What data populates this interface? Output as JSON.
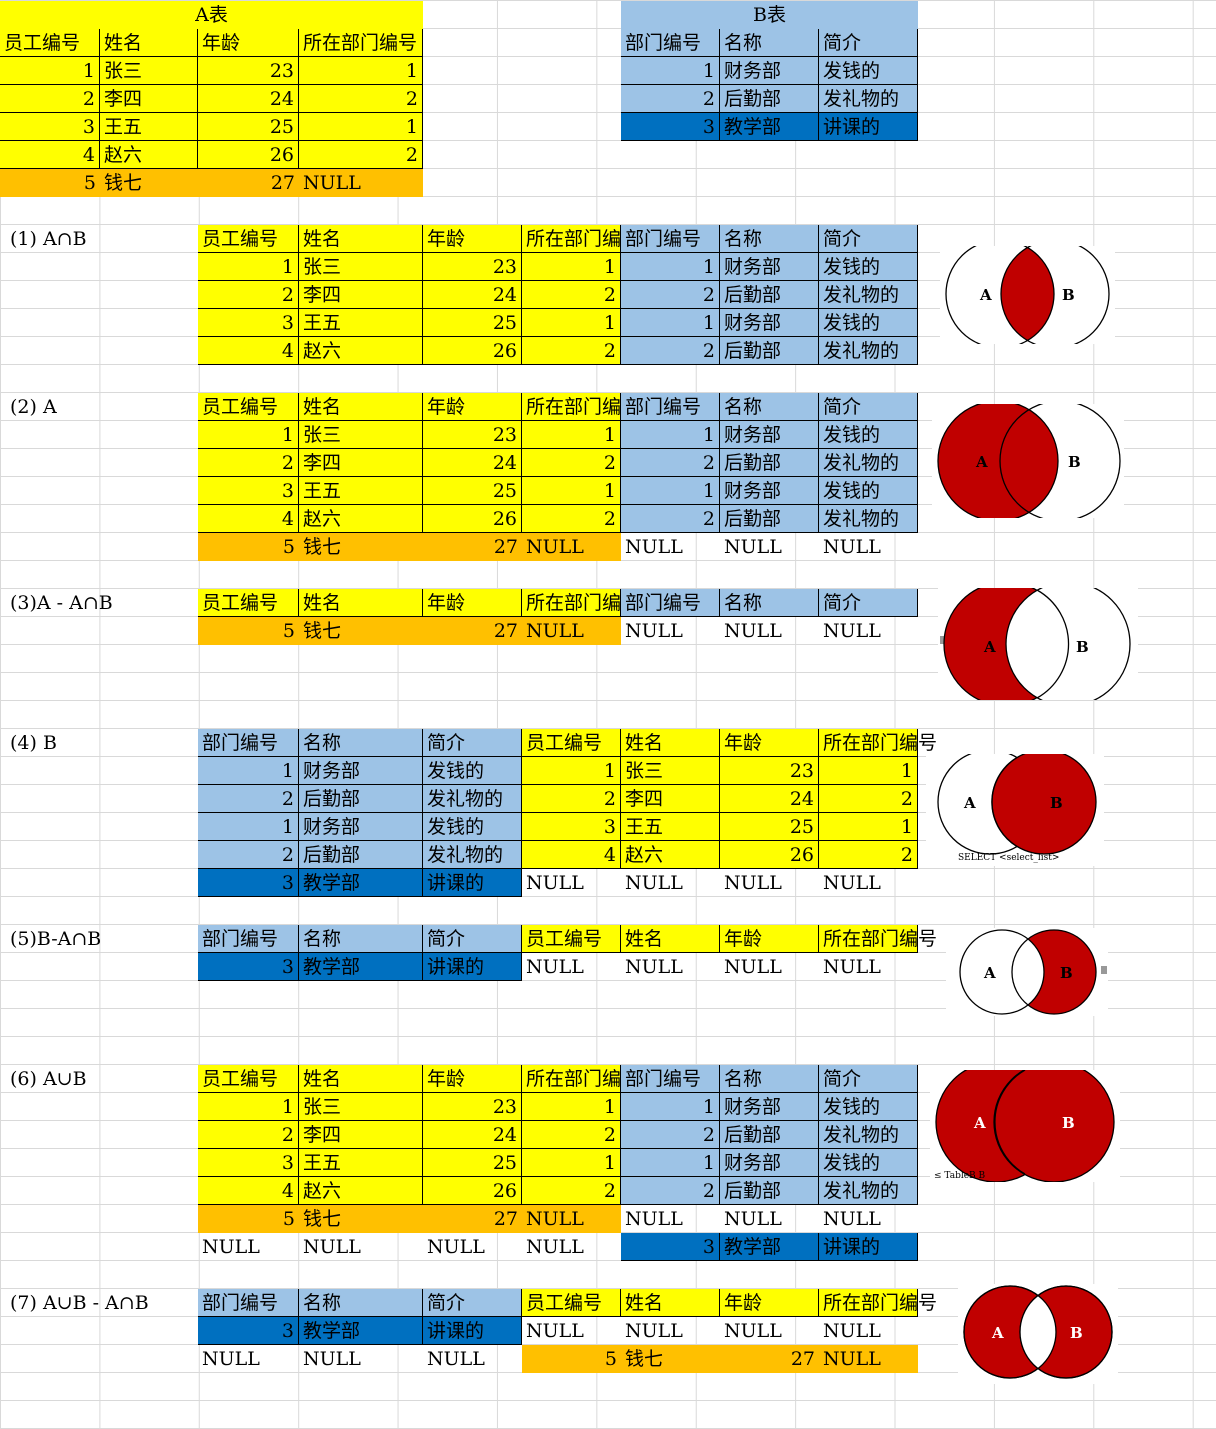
{
  "colors": {
    "yellow": "#ffff00",
    "orange": "#ffc000",
    "light_blue": "#9dc3e6",
    "dark_blue": "#0070c0",
    "venn_red": "#c00000"
  },
  "null_text": "NULL",
  "table_a": {
    "title": "A表",
    "headers": [
      "员工编号",
      "姓名",
      "年龄",
      "所在部门编号"
    ],
    "rows": [
      [
        "1",
        "张三",
        "23",
        "1"
      ],
      [
        "2",
        "李四",
        "24",
        "2"
      ],
      [
        "3",
        "王五",
        "25",
        "1"
      ],
      [
        "4",
        "赵六",
        "26",
        "2"
      ],
      [
        "5",
        "钱七",
        "27",
        "NULL"
      ]
    ]
  },
  "table_b": {
    "title": "B表",
    "headers": [
      "部门编号",
      "名称",
      "简介"
    ],
    "rows": [
      [
        "1",
        "财务部",
        "发钱的"
      ],
      [
        "2",
        "后勤部",
        "发礼物的"
      ],
      [
        "3",
        "教学部",
        "讲课的"
      ]
    ]
  },
  "sections": {
    "s1": {
      "label": "(1) A∩B"
    },
    "s2": {
      "label": "(2) A"
    },
    "s3": {
      "label": "(3)A - A∩B"
    },
    "s4": {
      "label": "(4) B"
    },
    "s5": {
      "label": "(5)B-A∩B"
    },
    "s6": {
      "label": "(6) A∪B"
    },
    "s7": {
      "label": "(7) A∪B - A∩B"
    }
  },
  "venn": {
    "a_label": "A",
    "b_label": "B",
    "caption_4": "SELECT <select_list>",
    "caption_6": "≤ TableB B"
  }
}
